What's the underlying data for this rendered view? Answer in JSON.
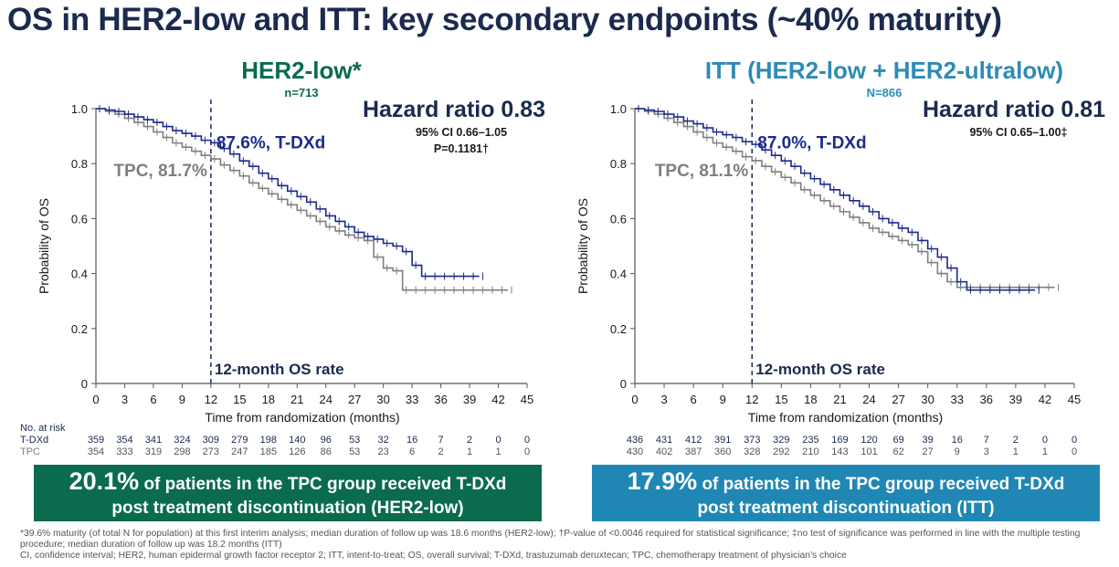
{
  "title": "OS in HER2-low and ITT: key secondary endpoints (~40% maturity)",
  "colors": {
    "tdxd": "#1b2a8c",
    "tpc": "#7f7f7f",
    "left_heading": "#0a6b4f",
    "right_heading": "#2e8bb5",
    "title": "#1b2a4e"
  },
  "chart_data": [
    {
      "type": "line",
      "subtitle": "HER2-low*",
      "n_label": "n=713",
      "hazard_ratio": "Hazard ratio 0.83",
      "ci": "95%  CI 0.66–1.05",
      "p_value": "P=0.1181†",
      "tdxd_label": "87.6%, T-DXd",
      "tpc_label": "TPC, 81.7%",
      "vline_label": "12-month OS rate",
      "xlabel": "Time from randomization (months)",
      "ylabel": "Probability of OS",
      "xlim": [
        0,
        45
      ],
      "ylim": [
        0,
        1.0
      ],
      "xticks": [
        0,
        3,
        6,
        9,
        12,
        15,
        18,
        21,
        24,
        27,
        30,
        33,
        36,
        39,
        42,
        45
      ],
      "yticks": [
        "0",
        "0.2",
        "0.4",
        "0.6",
        "0.8",
        "1.0"
      ],
      "series": [
        {
          "name": "T-DXd",
          "x": [
            0,
            1,
            2,
            3,
            4,
            5,
            6,
            7,
            8,
            9,
            10,
            11,
            12,
            13,
            14,
            15,
            16,
            17,
            18,
            19,
            20,
            21,
            22,
            23,
            24,
            25,
            26,
            27,
            28,
            29,
            30,
            31,
            32,
            33,
            34,
            35,
            36,
            37,
            38,
            39,
            40
          ],
          "y": [
            1.0,
            0.995,
            0.99,
            0.98,
            0.97,
            0.96,
            0.95,
            0.935,
            0.92,
            0.91,
            0.9,
            0.885,
            0.876,
            0.855,
            0.835,
            0.81,
            0.79,
            0.765,
            0.745,
            0.72,
            0.7,
            0.68,
            0.66,
            0.635,
            0.61,
            0.59,
            0.57,
            0.55,
            0.535,
            0.525,
            0.51,
            0.5,
            0.48,
            0.43,
            0.39,
            0.39,
            0.39,
            0.39,
            0.39,
            0.39,
            0.39
          ]
        },
        {
          "name": "TPC",
          "x": [
            0,
            1,
            2,
            3,
            4,
            5,
            6,
            7,
            8,
            9,
            10,
            11,
            12,
            13,
            14,
            15,
            16,
            17,
            18,
            19,
            20,
            21,
            22,
            23,
            24,
            25,
            26,
            27,
            28,
            29,
            30,
            31,
            32,
            33,
            34,
            35,
            36,
            37,
            38,
            39,
            40,
            41,
            42,
            43
          ],
          "y": [
            1.0,
            0.99,
            0.98,
            0.965,
            0.95,
            0.935,
            0.915,
            0.895,
            0.875,
            0.86,
            0.845,
            0.83,
            0.817,
            0.795,
            0.775,
            0.755,
            0.73,
            0.71,
            0.69,
            0.67,
            0.65,
            0.63,
            0.61,
            0.59,
            0.57,
            0.555,
            0.54,
            0.53,
            0.52,
            0.46,
            0.42,
            0.41,
            0.34,
            0.34,
            0.34,
            0.34,
            0.34,
            0.34,
            0.34,
            0.34,
            0.34,
            0.34,
            0.34,
            0.34
          ]
        }
      ],
      "risk_header": "No. at risk",
      "risk_rows": [
        {
          "label": "T-DXd",
          "values": [
            "359",
            "354",
            "341",
            "324",
            "309",
            "279",
            "198",
            "140",
            "96",
            "53",
            "32",
            "16",
            "7",
            "2",
            "0",
            "0"
          ]
        },
        {
          "label": "TPC",
          "values": [
            "354",
            "333",
            "319",
            "298",
            "273",
            "247",
            "185",
            "126",
            "86",
            "53",
            "23",
            "6",
            "2",
            "1",
            "1",
            "0"
          ]
        }
      ]
    },
    {
      "type": "line",
      "subtitle": "ITT (HER2-low + HER2-ultralow)",
      "n_label": "N=866",
      "hazard_ratio": "Hazard ratio 0.81",
      "ci": "95%  CI 0.65–1.00‡",
      "p_value": "",
      "tdxd_label": "87.0%, T-DXd",
      "tpc_label": "TPC, 81.1%",
      "vline_label": "12-month OS rate",
      "xlabel": "Time from randomization (months)",
      "ylabel": "Probability of OS",
      "xlim": [
        0,
        45
      ],
      "ylim": [
        0,
        1.0
      ],
      "xticks": [
        0,
        3,
        6,
        9,
        12,
        15,
        18,
        21,
        24,
        27,
        30,
        33,
        36,
        39,
        42,
        45
      ],
      "yticks": [
        "0",
        "0.2",
        "0.4",
        "0.6",
        "0.8",
        "1.0"
      ],
      "series": [
        {
          "name": "T-DXd",
          "x": [
            0,
            1,
            2,
            3,
            4,
            5,
            6,
            7,
            8,
            9,
            10,
            11,
            12,
            13,
            14,
            15,
            16,
            17,
            18,
            19,
            20,
            21,
            22,
            23,
            24,
            25,
            26,
            27,
            28,
            29,
            30,
            31,
            32,
            33,
            34,
            35,
            36,
            37,
            38,
            39,
            40,
            41
          ],
          "y": [
            1.0,
            0.995,
            0.99,
            0.98,
            0.97,
            0.955,
            0.945,
            0.93,
            0.915,
            0.905,
            0.895,
            0.88,
            0.87,
            0.85,
            0.83,
            0.81,
            0.79,
            0.765,
            0.745,
            0.725,
            0.705,
            0.685,
            0.665,
            0.645,
            0.625,
            0.6,
            0.585,
            0.565,
            0.55,
            0.52,
            0.49,
            0.46,
            0.42,
            0.37,
            0.34,
            0.34,
            0.34,
            0.34,
            0.34,
            0.34,
            0.34,
            0.34
          ]
        },
        {
          "name": "TPC",
          "x": [
            0,
            1,
            2,
            3,
            4,
            5,
            6,
            7,
            8,
            9,
            10,
            11,
            12,
            13,
            14,
            15,
            16,
            17,
            18,
            19,
            20,
            21,
            22,
            23,
            24,
            25,
            26,
            27,
            28,
            29,
            30,
            31,
            32,
            33,
            34,
            35,
            36,
            37,
            38,
            39,
            40,
            41,
            42,
            43
          ],
          "y": [
            1.0,
            0.99,
            0.98,
            0.965,
            0.95,
            0.935,
            0.915,
            0.895,
            0.875,
            0.86,
            0.845,
            0.825,
            0.811,
            0.79,
            0.77,
            0.75,
            0.73,
            0.705,
            0.685,
            0.665,
            0.645,
            0.625,
            0.605,
            0.585,
            0.565,
            0.55,
            0.535,
            0.52,
            0.505,
            0.48,
            0.44,
            0.4,
            0.37,
            0.35,
            0.35,
            0.35,
            0.35,
            0.35,
            0.35,
            0.35,
            0.35,
            0.35,
            0.35,
            0.35
          ]
        }
      ],
      "risk_header": "",
      "risk_rows": [
        {
          "label": "",
          "values": [
            "436",
            "431",
            "412",
            "391",
            "373",
            "329",
            "235",
            "169",
            "120",
            "69",
            "39",
            "16",
            "7",
            "2",
            "0",
            "0"
          ]
        },
        {
          "label": "",
          "values": [
            "430",
            "402",
            "387",
            "360",
            "328",
            "292",
            "210",
            "143",
            "101",
            "62",
            "27",
            "9",
            "3",
            "1",
            "1",
            "0"
          ]
        }
      ]
    }
  ],
  "banners": [
    {
      "pct": "20.1%",
      "line1": " of patients in the TPC group received T-DXd",
      "line2": "post treatment discontinuation (HER2-low)"
    },
    {
      "pct": "17.9%",
      "line1": " of patients in the TPC group received T-DXd",
      "line2": "post treatment discontinuation (ITT)"
    }
  ],
  "footnote": {
    "line1": "*39.6% maturity (of total N for population) at this first interim analysis; median duration of follow up was 18.6 months (HER2-low); †P-value of <0.0046 required for statistical significance; ‡no test of significance was performed in line with the multiple testing procedure; median duration of follow up was 18.2 months (ITT)",
    "line2": "CI, confidence interval; HER2, human epidermal growth factor receptor 2; ITT, intent-to-treat; OS, overall survival; T-DXd, trastuzumab deruxtecan; TPC, chemotherapy treatment of physician’s choice"
  }
}
